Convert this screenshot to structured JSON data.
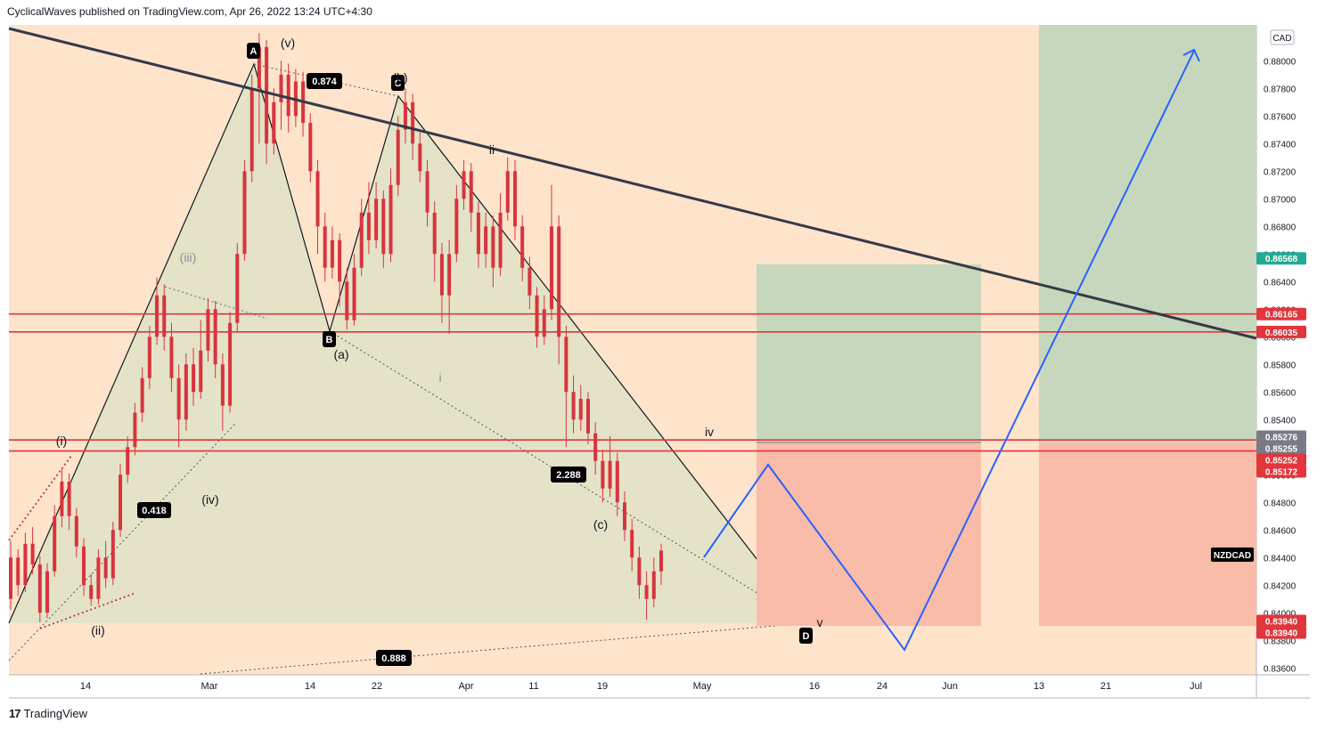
{
  "header": {
    "publisher_line": "CyclicalWaves published on TradingView.com, Apr 26, 2022 13:24 UTC+4:30"
  },
  "footer": {
    "brand": "TradingView",
    "logo_glyph": "17"
  },
  "colors": {
    "plot_bg": "#fde4cb",
    "wedge_fill": "#dfe3c8",
    "green_zone": "#c7d7bd",
    "red_zone": "#f9bca8",
    "resistance": "#e0363c",
    "trendline": "#363a45",
    "projection": "#2962ff",
    "candle": "#d8343d"
  },
  "chart_data": {
    "type": "candlestick",
    "symbol": "NZDCAD",
    "currency": "CAD",
    "x_ticks": [
      "14",
      "Mar",
      "14",
      "22",
      "Apr",
      "11",
      "19",
      "May",
      "16",
      "24",
      "Jun",
      "13",
      "21",
      "Jul"
    ],
    "y_ticks": [
      "0.88000",
      "0.87800",
      "0.87600",
      "0.87400",
      "0.87200",
      "0.87000",
      "0.86800",
      "0.86600",
      "0.86400",
      "0.86200",
      "0.86000",
      "0.85800",
      "0.85600",
      "0.85400",
      "0.85200",
      "0.85000",
      "0.84800",
      "0.84600",
      "0.84400",
      "0.84200",
      "0.84000",
      "0.83800",
      "0.83600"
    ],
    "ylim": [
      0.8355,
      0.8826
    ],
    "price_labels": [
      {
        "text": "0.86568",
        "value": 0.86568,
        "color": "#22ab94"
      },
      {
        "text": "0.86165",
        "value": 0.86165,
        "color": "#e0363c"
      },
      {
        "text": "0.86035",
        "value": 0.86035,
        "color": "#e0363c"
      },
      {
        "text": "0.85276",
        "value": 0.85276,
        "color": "#787b86"
      },
      {
        "text": "0.85255",
        "value": 0.85255,
        "color": "#787b86"
      },
      {
        "text": "0.85252",
        "value": 0.85252,
        "color": "#e0363c"
      },
      {
        "text": "0.85172",
        "value": 0.85172,
        "color": "#e0363c"
      },
      {
        "text": "0.83940",
        "value": 0.8394,
        "color": "#e0363c"
      },
      {
        "text": "0.83940",
        "value": 0.8394,
        "color": "#e0363c"
      }
    ],
    "horizontal_levels": [
      0.86165,
      0.86035,
      0.85252,
      0.85172
    ],
    "wave_labels": [
      "A",
      "B",
      "C",
      "D",
      "(v)",
      "(b)",
      "(iii)",
      "(i)",
      "(ii)",
      "(iv)",
      "(a)",
      "(c)",
      "i",
      "ii",
      "iv",
      "v"
    ],
    "ratio_labels": [
      "0.874",
      "0.418",
      "2.288",
      "0.888"
    ],
    "symbol_tag": "NZDCAD",
    "candles_sampled": [
      {
        "o": 0.841,
        "c": 0.844,
        "h": 0.8452,
        "l": 0.8402
      },
      {
        "o": 0.844,
        "c": 0.842,
        "h": 0.8446,
        "l": 0.8412
      },
      {
        "o": 0.842,
        "c": 0.845,
        "h": 0.8458,
        "l": 0.8415
      },
      {
        "o": 0.845,
        "c": 0.8435,
        "h": 0.8462,
        "l": 0.8428
      },
      {
        "o": 0.8435,
        "c": 0.84,
        "h": 0.8441,
        "l": 0.8393
      },
      {
        "o": 0.84,
        "c": 0.843,
        "h": 0.8436,
        "l": 0.8396
      },
      {
        "o": 0.843,
        "c": 0.847,
        "h": 0.8478,
        "l": 0.8426
      },
      {
        "o": 0.847,
        "c": 0.8495,
        "h": 0.8504,
        "l": 0.8462
      },
      {
        "o": 0.8495,
        "c": 0.847,
        "h": 0.8501,
        "l": 0.846
      },
      {
        "o": 0.847,
        "c": 0.8448,
        "h": 0.8476,
        "l": 0.844
      },
      {
        "o": 0.8448,
        "c": 0.842,
        "h": 0.8454,
        "l": 0.8412
      },
      {
        "o": 0.842,
        "c": 0.841,
        "h": 0.8428,
        "l": 0.8405
      },
      {
        "o": 0.841,
        "c": 0.844,
        "h": 0.8446,
        "l": 0.8406
      },
      {
        "o": 0.844,
        "c": 0.8425,
        "h": 0.8452,
        "l": 0.8418
      },
      {
        "o": 0.8425,
        "c": 0.846,
        "h": 0.8466,
        "l": 0.842
      },
      {
        "o": 0.846,
        "c": 0.85,
        "h": 0.8508,
        "l": 0.8455
      },
      {
        "o": 0.85,
        "c": 0.852,
        "h": 0.8528,
        "l": 0.8494
      },
      {
        "o": 0.852,
        "c": 0.8545,
        "h": 0.8552,
        "l": 0.8514
      },
      {
        "o": 0.8545,
        "c": 0.857,
        "h": 0.8578,
        "l": 0.8538
      },
      {
        "o": 0.857,
        "c": 0.86,
        "h": 0.8608,
        "l": 0.8562
      },
      {
        "o": 0.86,
        "c": 0.863,
        "h": 0.8643,
        "l": 0.8594
      },
      {
        "o": 0.863,
        "c": 0.86,
        "h": 0.8638,
        "l": 0.859
      },
      {
        "o": 0.86,
        "c": 0.857,
        "h": 0.861,
        "l": 0.856
      },
      {
        "o": 0.857,
        "c": 0.854,
        "h": 0.858,
        "l": 0.852
      },
      {
        "o": 0.854,
        "c": 0.858,
        "h": 0.8588,
        "l": 0.8532
      },
      {
        "o": 0.858,
        "c": 0.856,
        "h": 0.8592,
        "l": 0.855
      },
      {
        "o": 0.856,
        "c": 0.859,
        "h": 0.8612,
        "l": 0.8555
      },
      {
        "o": 0.859,
        "c": 0.862,
        "h": 0.8628,
        "l": 0.8582
      },
      {
        "o": 0.862,
        "c": 0.858,
        "h": 0.8626,
        "l": 0.857
      },
      {
        "o": 0.858,
        "c": 0.855,
        "h": 0.8588,
        "l": 0.8532
      },
      {
        "o": 0.855,
        "c": 0.861,
        "h": 0.8618,
        "l": 0.8545
      },
      {
        "o": 0.861,
        "c": 0.866,
        "h": 0.8668,
        "l": 0.8604
      },
      {
        "o": 0.866,
        "c": 0.872,
        "h": 0.8728,
        "l": 0.8655
      },
      {
        "o": 0.872,
        "c": 0.878,
        "h": 0.879,
        "l": 0.8712
      },
      {
        "o": 0.878,
        "c": 0.881,
        "h": 0.882,
        "l": 0.874
      },
      {
        "o": 0.881,
        "c": 0.874,
        "h": 0.8815,
        "l": 0.8725
      },
      {
        "o": 0.874,
        "c": 0.877,
        "h": 0.878,
        "l": 0.8732
      },
      {
        "o": 0.877,
        "c": 0.879,
        "h": 0.88,
        "l": 0.875
      },
      {
        "o": 0.879,
        "c": 0.876,
        "h": 0.8798,
        "l": 0.8748
      },
      {
        "o": 0.876,
        "c": 0.8785,
        "h": 0.8794,
        "l": 0.8752
      },
      {
        "o": 0.8785,
        "c": 0.8755,
        "h": 0.8792,
        "l": 0.8745
      },
      {
        "o": 0.8755,
        "c": 0.872,
        "h": 0.8762,
        "l": 0.8712
      },
      {
        "o": 0.872,
        "c": 0.868,
        "h": 0.8728,
        "l": 0.866
      },
      {
        "o": 0.868,
        "c": 0.865,
        "h": 0.869,
        "l": 0.864
      },
      {
        "o": 0.865,
        "c": 0.867,
        "h": 0.868,
        "l": 0.8642
      },
      {
        "o": 0.867,
        "c": 0.864,
        "h": 0.8675,
        "l": 0.8622
      },
      {
        "o": 0.864,
        "c": 0.8612,
        "h": 0.865,
        "l": 0.8605
      },
      {
        "o": 0.8612,
        "c": 0.865,
        "h": 0.866,
        "l": 0.8608
      },
      {
        "o": 0.865,
        "c": 0.869,
        "h": 0.87,
        "l": 0.8644
      },
      {
        "o": 0.869,
        "c": 0.867,
        "h": 0.8712,
        "l": 0.866
      },
      {
        "o": 0.867,
        "c": 0.87,
        "h": 0.8712,
        "l": 0.8664
      },
      {
        "o": 0.87,
        "c": 0.866,
        "h": 0.8706,
        "l": 0.865
      },
      {
        "o": 0.866,
        "c": 0.871,
        "h": 0.8722,
        "l": 0.8654
      },
      {
        "o": 0.871,
        "c": 0.875,
        "h": 0.876,
        "l": 0.8702
      },
      {
        "o": 0.875,
        "c": 0.877,
        "h": 0.878,
        "l": 0.874
      },
      {
        "o": 0.877,
        "c": 0.874,
        "h": 0.8776,
        "l": 0.8728
      },
      {
        "o": 0.874,
        "c": 0.872,
        "h": 0.8748,
        "l": 0.8712
      },
      {
        "o": 0.872,
        "c": 0.869,
        "h": 0.8728,
        "l": 0.868
      },
      {
        "o": 0.869,
        "c": 0.866,
        "h": 0.8698,
        "l": 0.864
      },
      {
        "o": 0.866,
        "c": 0.863,
        "h": 0.8668,
        "l": 0.861
      },
      {
        "o": 0.863,
        "c": 0.866,
        "h": 0.867,
        "l": 0.8602
      },
      {
        "o": 0.866,
        "c": 0.87,
        "h": 0.871,
        "l": 0.8654
      },
      {
        "o": 0.87,
        "c": 0.872,
        "h": 0.8728,
        "l": 0.8692
      },
      {
        "o": 0.872,
        "c": 0.869,
        "h": 0.8726,
        "l": 0.8676
      },
      {
        "o": 0.869,
        "c": 0.866,
        "h": 0.8698,
        "l": 0.865
      },
      {
        "o": 0.866,
        "c": 0.868,
        "h": 0.869,
        "l": 0.865
      },
      {
        "o": 0.868,
        "c": 0.865,
        "h": 0.8688,
        "l": 0.8636
      },
      {
        "o": 0.865,
        "c": 0.869,
        "h": 0.8704,
        "l": 0.8644
      },
      {
        "o": 0.869,
        "c": 0.872,
        "h": 0.873,
        "l": 0.8684
      },
      {
        "o": 0.872,
        "c": 0.868,
        "h": 0.8728,
        "l": 0.867
      },
      {
        "o": 0.868,
        "c": 0.865,
        "h": 0.8688,
        "l": 0.864
      },
      {
        "o": 0.865,
        "c": 0.863,
        "h": 0.8658,
        "l": 0.862
      },
      {
        "o": 0.863,
        "c": 0.86,
        "h": 0.8636,
        "l": 0.8592
      },
      {
        "o": 0.86,
        "c": 0.862,
        "h": 0.863,
        "l": 0.8594
      },
      {
        "o": 0.862,
        "c": 0.868,
        "h": 0.871,
        "l": 0.8612
      },
      {
        "o": 0.868,
        "c": 0.86,
        "h": 0.8688,
        "l": 0.858
      },
      {
        "o": 0.86,
        "c": 0.856,
        "h": 0.8608,
        "l": 0.852
      },
      {
        "o": 0.856,
        "c": 0.854,
        "h": 0.8572,
        "l": 0.853
      },
      {
        "o": 0.854,
        "c": 0.8555,
        "h": 0.8565,
        "l": 0.8532
      },
      {
        "o": 0.8555,
        "c": 0.853,
        "h": 0.856,
        "l": 0.8522
      },
      {
        "o": 0.853,
        "c": 0.851,
        "h": 0.8538,
        "l": 0.85
      },
      {
        "o": 0.851,
        "c": 0.849,
        "h": 0.8518,
        "l": 0.848
      },
      {
        "o": 0.849,
        "c": 0.851,
        "h": 0.8528,
        "l": 0.8484
      },
      {
        "o": 0.851,
        "c": 0.848,
        "h": 0.8516,
        "l": 0.847
      },
      {
        "o": 0.848,
        "c": 0.846,
        "h": 0.8488,
        "l": 0.8452
      },
      {
        "o": 0.846,
        "c": 0.844,
        "h": 0.8468,
        "l": 0.843
      },
      {
        "o": 0.844,
        "c": 0.842,
        "h": 0.8448,
        "l": 0.841
      },
      {
        "o": 0.842,
        "c": 0.841,
        "h": 0.843,
        "l": 0.8395
      },
      {
        "o": 0.841,
        "c": 0.843,
        "h": 0.844,
        "l": 0.8404
      },
      {
        "o": 0.843,
        "c": 0.8445,
        "h": 0.845,
        "l": 0.842
      }
    ]
  }
}
